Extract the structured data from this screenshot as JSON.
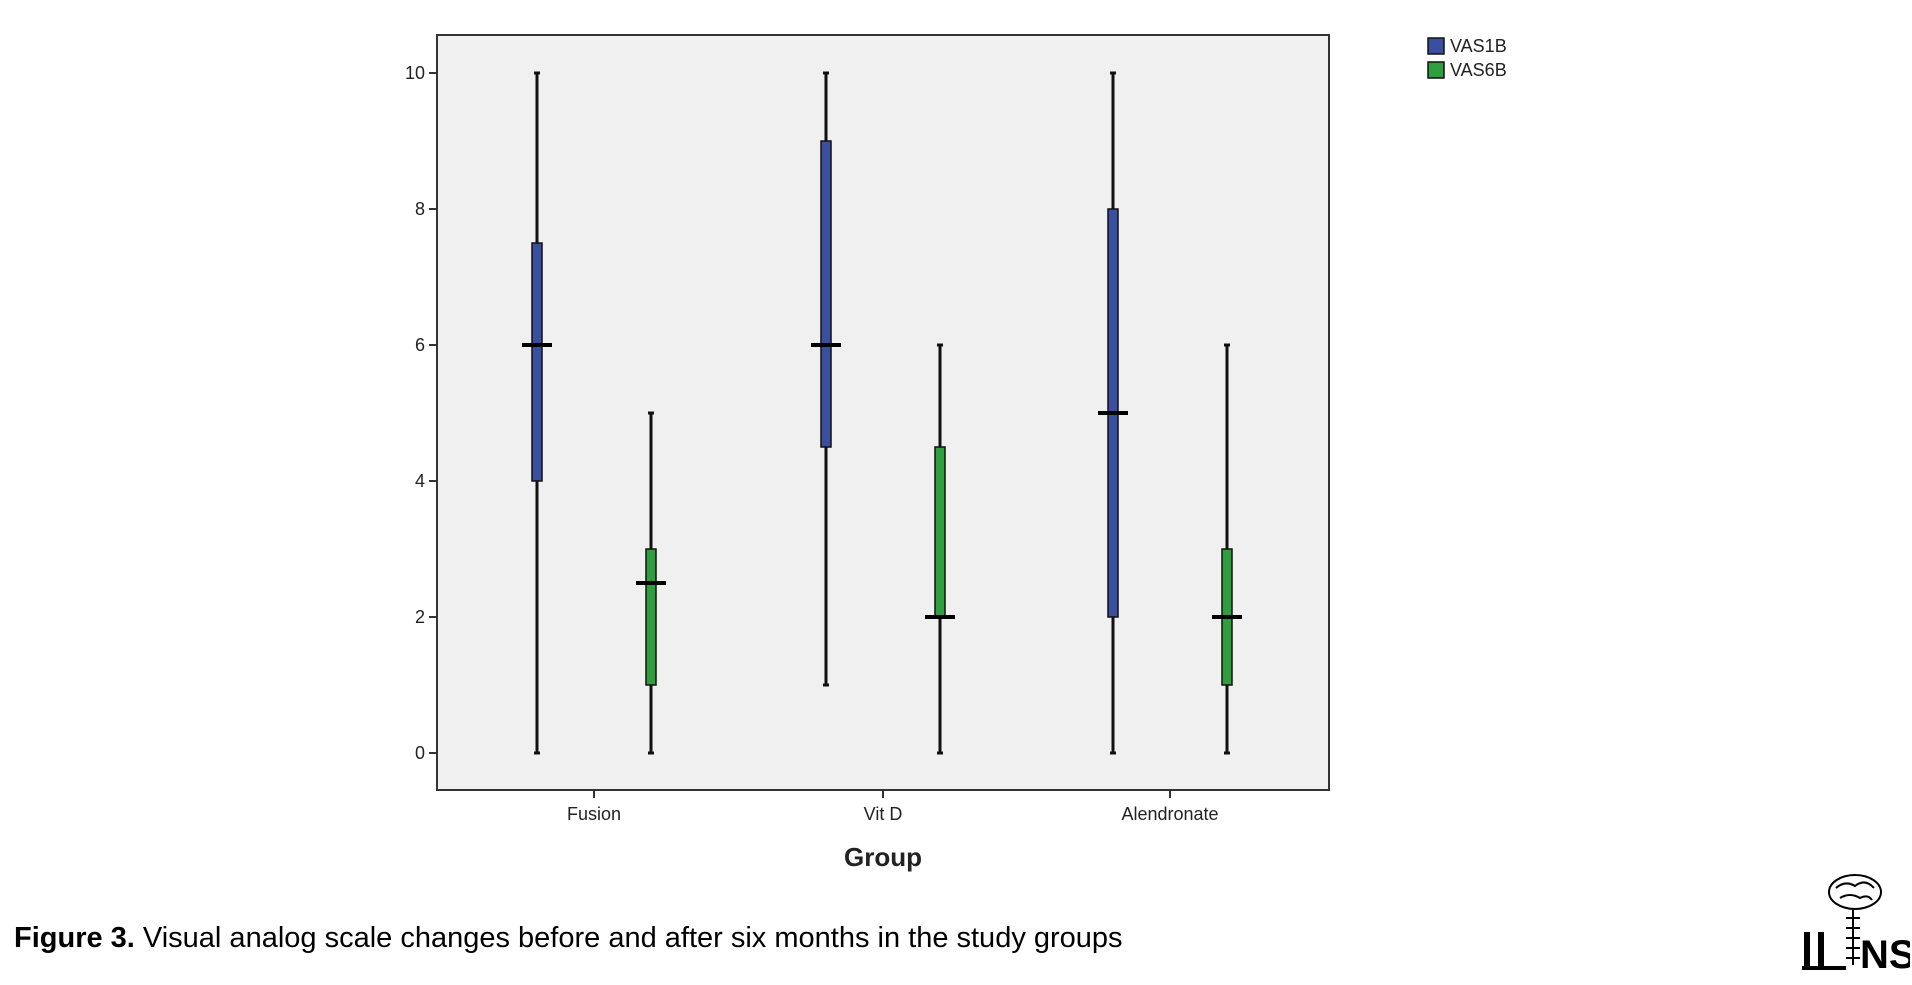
{
  "chart_data": {
    "type": "boxplot",
    "categories": [
      "Fusion",
      "Vit D",
      "Alendronate"
    ],
    "xlabel": "Group",
    "ylabel": "",
    "ylim": [
      -0.5,
      10.6
    ],
    "yticks": [
      0,
      2,
      4,
      6,
      8,
      10
    ],
    "grid": false,
    "legend_position": "top-right, outside plot",
    "series": [
      {
        "name": "VAS1B",
        "color": "#3a4fa0",
        "boxes": [
          {
            "category": "Fusion",
            "min": 0,
            "q1": 4,
            "median": 6,
            "q3": 7.5,
            "max": 10
          },
          {
            "category": "Vit D",
            "min": 1,
            "q1": 4.5,
            "median": 6,
            "q3": 9,
            "max": 10
          },
          {
            "category": "Alendronate",
            "min": 0,
            "q1": 2,
            "median": 5,
            "q3": 8,
            "max": 10
          }
        ]
      },
      {
        "name": "VAS6B",
        "color": "#2e9e3e",
        "boxes": [
          {
            "category": "Fusion",
            "min": 0,
            "q1": 1,
            "median": 2.5,
            "q3": 3,
            "max": 5
          },
          {
            "category": "Vit D",
            "min": 0,
            "q1": 2,
            "median": 2,
            "q3": 4.5,
            "max": 6
          },
          {
            "category": "Alendronate",
            "min": 0,
            "q1": 1,
            "median": 2,
            "q3": 3,
            "max": 6
          }
        ]
      }
    ],
    "plot_background": "#f0f0f0"
  },
  "caption": {
    "label": "Figure 3.",
    "text": " Visual analog scale changes before and after six months in the study groups"
  },
  "logo": {
    "text": "NS"
  }
}
